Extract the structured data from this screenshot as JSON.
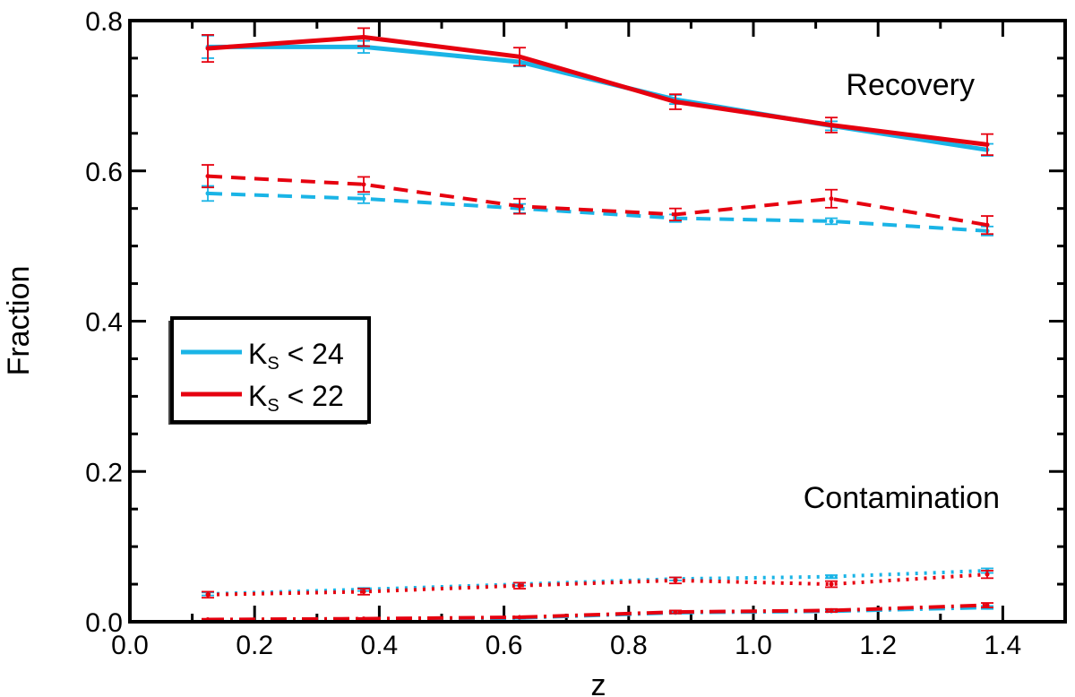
{
  "chart_data": {
    "type": "line",
    "title": "",
    "xlabel": "z",
    "ylabel": "Fraction",
    "xlim": [
      0.0,
      1.5
    ],
    "ylim": [
      0.0,
      0.8
    ],
    "x_ticks": [
      "0.0",
      "0.2",
      "0.4",
      "0.6",
      "0.8",
      "1.0",
      "1.2",
      "1.4"
    ],
    "y_ticks": [
      "0.0",
      "0.2",
      "0.4",
      "0.6",
      "0.8"
    ],
    "x": [
      0.125,
      0.375,
      0.625,
      0.875,
      1.125,
      1.375
    ],
    "series": [
      {
        "name": "Recovery, Ks < 24",
        "group": "K24",
        "style": "solid",
        "color": "#1ab4e6",
        "values": [
          0.765,
          0.765,
          0.745,
          0.695,
          0.66,
          0.628
        ],
        "errors": [
          0.015,
          0.008,
          0.006,
          0.006,
          0.006,
          0.008
        ]
      },
      {
        "name": "Recovery, Ks < 22",
        "group": "K22",
        "style": "solid",
        "color": "#e6000f",
        "values": [
          0.763,
          0.778,
          0.752,
          0.692,
          0.661,
          0.635
        ],
        "errors": [
          0.018,
          0.012,
          0.012,
          0.01,
          0.01,
          0.014
        ]
      },
      {
        "name": "Recovery (dashed), Ks < 24",
        "group": "K24",
        "style": "dashed",
        "color": "#1ab4e6",
        "values": [
          0.57,
          0.563,
          0.55,
          0.537,
          0.533,
          0.52
        ],
        "errors": [
          0.01,
          0.006,
          0.006,
          0.005,
          0.004,
          0.006
        ]
      },
      {
        "name": "Recovery (dashed), Ks < 22",
        "group": "K22",
        "style": "dashed",
        "color": "#e6000f",
        "values": [
          0.593,
          0.582,
          0.553,
          0.542,
          0.563,
          0.528
        ],
        "errors": [
          0.015,
          0.01,
          0.01,
          0.008,
          0.012,
          0.012
        ]
      },
      {
        "name": "Contamination (dotted), Ks < 24",
        "group": "K24",
        "style": "dotted",
        "color": "#1ab4e6",
        "values": [
          0.037,
          0.043,
          0.05,
          0.057,
          0.06,
          0.068
        ],
        "errors": [
          0.002,
          0.002,
          0.002,
          0.002,
          0.002,
          0.003
        ]
      },
      {
        "name": "Contamination (dotted), Ks < 22",
        "group": "K22",
        "style": "dotted",
        "color": "#e6000f",
        "values": [
          0.036,
          0.04,
          0.048,
          0.055,
          0.05,
          0.063
        ],
        "errors": [
          0.004,
          0.004,
          0.004,
          0.004,
          0.004,
          0.005
        ]
      },
      {
        "name": "Contamination (dash-dot), Ks < 24",
        "group": "K24",
        "style": "dashdot",
        "color": "#1ab4e6",
        "values": [
          0.002,
          0.003,
          0.005,
          0.012,
          0.014,
          0.019
        ],
        "errors": [
          0.001,
          0.001,
          0.001,
          0.001,
          0.001,
          0.002
        ]
      },
      {
        "name": "Contamination (dash-dot), Ks < 22",
        "group": "K22",
        "style": "dashdot",
        "color": "#e6000f",
        "values": [
          0.003,
          0.004,
          0.006,
          0.013,
          0.015,
          0.022
        ],
        "errors": [
          0.001,
          0.001,
          0.001,
          0.002,
          0.002,
          0.003
        ]
      }
    ],
    "annotations": [
      "Recovery",
      "Contamination"
    ],
    "legend": {
      "placement": "center-left",
      "entries": [
        {
          "main": "K",
          "sub": "S",
          "rest": " < 24",
          "color": "#1ab4e6"
        },
        {
          "main": "K",
          "sub": "S",
          "rest": " < 22",
          "color": "#e6000f"
        }
      ]
    },
    "grid": false
  }
}
